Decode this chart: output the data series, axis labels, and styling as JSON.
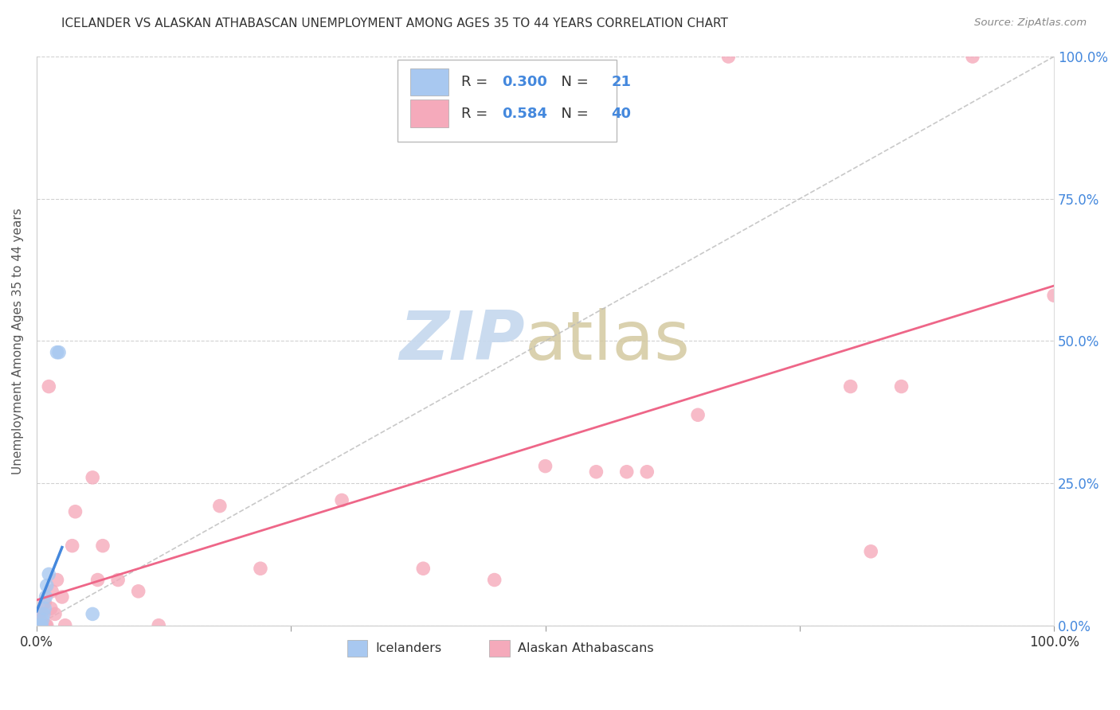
{
  "title": "ICELANDER VS ALASKAN ATHABASCAN UNEMPLOYMENT AMONG AGES 35 TO 44 YEARS CORRELATION CHART",
  "source": "Source: ZipAtlas.com",
  "ylabel": "Unemployment Among Ages 35 to 44 years",
  "xlim": [
    0,
    1.0
  ],
  "ylim": [
    0,
    1.0
  ],
  "xtick_vals": [
    0,
    0.25,
    0.5,
    0.75,
    1.0
  ],
  "xtick_labels": [
    "0.0%",
    "",
    "",
    "",
    "100.0%"
  ],
  "ytick_vals": [
    0,
    0.25,
    0.5,
    0.75,
    1.0
  ],
  "ytick_labels_right": [
    "0.0%",
    "25.0%",
    "50.0%",
    "75.0%",
    "100.0%"
  ],
  "icelander_color": "#A8C8F0",
  "athabascan_color": "#F5AABB",
  "icelander_R": 0.3,
  "icelander_N": 21,
  "athabascan_R": 0.584,
  "athabascan_N": 40,
  "diagonal_color": "#BBBBBB",
  "icelander_line_color": "#4488DD",
  "athabascan_line_color": "#EE6688",
  "icelander_points": [
    [
      0.0,
      0.0
    ],
    [
      0.0,
      0.0
    ],
    [
      0.0,
      0.0
    ],
    [
      0.0,
      0.0
    ],
    [
      0.0,
      0.0
    ],
    [
      0.0,
      0.0
    ],
    [
      0.0,
      0.0
    ],
    [
      0.0,
      0.0
    ],
    [
      0.0,
      0.0
    ],
    [
      0.003,
      0.0
    ],
    [
      0.004,
      0.0
    ],
    [
      0.005,
      0.0
    ],
    [
      0.006,
      0.01
    ],
    [
      0.007,
      0.02
    ],
    [
      0.008,
      0.03
    ],
    [
      0.009,
      0.05
    ],
    [
      0.01,
      0.07
    ],
    [
      0.012,
      0.09
    ],
    [
      0.02,
      0.48
    ],
    [
      0.022,
      0.48
    ],
    [
      0.055,
      0.02
    ]
  ],
  "athabascan_points": [
    [
      0.0,
      0.0
    ],
    [
      0.0,
      0.0
    ],
    [
      0.0,
      0.0
    ],
    [
      0.003,
      0.02
    ],
    [
      0.004,
      0.0
    ],
    [
      0.005,
      0.02
    ],
    [
      0.008,
      0.04
    ],
    [
      0.009,
      0.0
    ],
    [
      0.01,
      0.0
    ],
    [
      0.012,
      0.42
    ],
    [
      0.014,
      0.03
    ],
    [
      0.015,
      0.06
    ],
    [
      0.018,
      0.02
    ],
    [
      0.02,
      0.08
    ],
    [
      0.025,
      0.05
    ],
    [
      0.028,
      0.0
    ],
    [
      0.035,
      0.14
    ],
    [
      0.038,
      0.2
    ],
    [
      0.055,
      0.26
    ],
    [
      0.06,
      0.08
    ],
    [
      0.065,
      0.14
    ],
    [
      0.08,
      0.08
    ],
    [
      0.1,
      0.06
    ],
    [
      0.12,
      0.0
    ],
    [
      0.18,
      0.21
    ],
    [
      0.22,
      0.1
    ],
    [
      0.3,
      0.22
    ],
    [
      0.38,
      0.1
    ],
    [
      0.45,
      0.08
    ],
    [
      0.5,
      0.28
    ],
    [
      0.55,
      0.27
    ],
    [
      0.58,
      0.27
    ],
    [
      0.6,
      0.27
    ],
    [
      0.65,
      0.37
    ],
    [
      0.68,
      1.0
    ],
    [
      0.8,
      0.42
    ],
    [
      0.82,
      0.13
    ],
    [
      0.85,
      0.42
    ],
    [
      0.92,
      1.0
    ],
    [
      1.0,
      0.58
    ]
  ]
}
